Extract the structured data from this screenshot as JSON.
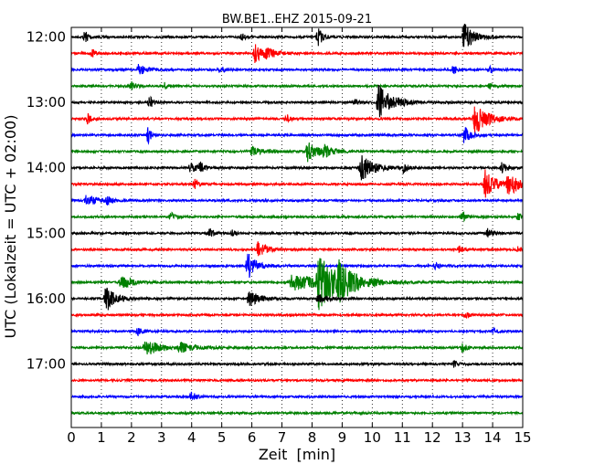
{
  "chart_data": {
    "type": "line",
    "title": "BW.BE1..EHZ 2015-09-21",
    "xlabel": "Zeit  [min]",
    "ylabel": "UTC (Lokalzeit = UTC + 02:00)",
    "xlim": [
      0,
      15
    ],
    "x_ticks": [
      "0",
      "1",
      "2",
      "3",
      "4",
      "5",
      "6",
      "7",
      "8",
      "9",
      "10",
      "11",
      "12",
      "13",
      "14",
      "15"
    ],
    "y_tick_labels": [
      "12:00",
      "13:00",
      "14:00",
      "15:00",
      "16:00",
      "17:00"
    ],
    "grid": "vertical dotted at each minute",
    "trace_interval_min": 15,
    "color_cycle": [
      "#000000",
      "#ff0000",
      "#0000ff",
      "#008000"
    ],
    "traces": [
      {
        "start": "12:00",
        "events": [
          {
            "t": 0.45,
            "a": 0.4,
            "d": 0.15
          },
          {
            "t": 5.65,
            "a": 0.25,
            "d": 0.12
          },
          {
            "t": 8.2,
            "a": 0.6,
            "d": 0.15
          },
          {
            "t": 13.05,
            "a": 0.85,
            "d": 0.3
          }
        ]
      },
      {
        "start": "12:15",
        "events": [
          {
            "t": 0.7,
            "a": 0.25,
            "d": 0.12
          },
          {
            "t": 6.1,
            "a": 0.6,
            "d": 0.3
          },
          {
            "t": 6.5,
            "a": 0.25,
            "d": 0.3
          }
        ]
      },
      {
        "start": "12:30",
        "events": [
          {
            "t": 2.25,
            "a": 0.4,
            "d": 0.2
          },
          {
            "t": 4.95,
            "a": 0.25,
            "d": 0.12
          },
          {
            "t": 12.7,
            "a": 0.3,
            "d": 0.12
          },
          {
            "t": 13.9,
            "a": 0.2,
            "d": 0.15
          }
        ]
      },
      {
        "start": "12:45",
        "events": [
          {
            "t": 2.0,
            "a": 0.25,
            "d": 0.12
          },
          {
            "t": 3.1,
            "a": 0.2,
            "d": 0.12
          },
          {
            "t": 13.9,
            "a": 0.2,
            "d": 0.12
          }
        ]
      },
      {
        "start": "13:00",
        "events": [
          {
            "t": 2.6,
            "a": 0.4,
            "d": 0.12
          },
          {
            "t": 9.4,
            "a": 0.3,
            "d": 0.1
          },
          {
            "t": 10.2,
            "a": 1.1,
            "d": 0.45
          }
        ]
      },
      {
        "start": "13:15",
        "events": [
          {
            "t": 0.55,
            "a": 0.35,
            "d": 0.12
          },
          {
            "t": 7.15,
            "a": 0.3,
            "d": 0.1
          },
          {
            "t": 13.4,
            "a": 1.0,
            "d": 0.4
          }
        ]
      },
      {
        "start": "13:30",
        "events": [
          {
            "t": 2.55,
            "a": 0.5,
            "d": 0.12
          },
          {
            "t": 13.05,
            "a": 0.55,
            "d": 0.2
          }
        ]
      },
      {
        "start": "13:45",
        "events": [
          {
            "t": 6.0,
            "a": 0.3,
            "d": 0.4
          },
          {
            "t": 7.85,
            "a": 0.6,
            "d": 0.35
          },
          {
            "t": 8.4,
            "a": 0.3,
            "d": 0.3
          }
        ]
      },
      {
        "start": "14:00",
        "events": [
          {
            "t": 3.95,
            "a": 0.3,
            "d": 0.3
          },
          {
            "t": 4.3,
            "a": 0.3,
            "d": 0.1
          },
          {
            "t": 9.6,
            "a": 0.9,
            "d": 0.4
          },
          {
            "t": 11.05,
            "a": 0.3,
            "d": 0.1
          },
          {
            "t": 14.3,
            "a": 0.3,
            "d": 0.2
          }
        ]
      },
      {
        "start": "14:15",
        "events": [
          {
            "t": 4.1,
            "a": 0.35,
            "d": 0.1
          },
          {
            "t": 13.75,
            "a": 0.9,
            "d": 0.3
          },
          {
            "t": 14.5,
            "a": 0.8,
            "d": 0.35
          }
        ]
      },
      {
        "start": "14:30",
        "events": [
          {
            "t": 0.5,
            "a": 0.35,
            "d": 0.4
          },
          {
            "t": 1.2,
            "a": 0.2,
            "d": 0.15
          }
        ]
      },
      {
        "start": "14:45",
        "events": [
          {
            "t": 3.3,
            "a": 0.3,
            "d": 0.12
          },
          {
            "t": 13.0,
            "a": 0.3,
            "d": 0.12
          },
          {
            "t": 14.85,
            "a": 0.25,
            "d": 0.1
          }
        ]
      },
      {
        "start": "15:00",
        "events": [
          {
            "t": 4.6,
            "a": 0.3,
            "d": 0.12
          },
          {
            "t": 5.35,
            "a": 0.25,
            "d": 0.1
          },
          {
            "t": 13.85,
            "a": 0.4,
            "d": 0.12
          }
        ]
      },
      {
        "start": "15:15",
        "events": [
          {
            "t": 6.2,
            "a": 0.45,
            "d": 0.3
          },
          {
            "t": 12.9,
            "a": 0.25,
            "d": 0.12
          },
          {
            "t": 14.85,
            "a": 0.2,
            "d": 0.1
          }
        ]
      },
      {
        "start": "15:30",
        "events": [
          {
            "t": 5.85,
            "a": 0.9,
            "d": 0.25
          },
          {
            "t": 12.1,
            "a": 0.25,
            "d": 0.12
          }
        ]
      },
      {
        "start": "15:45",
        "events": [
          {
            "t": 1.65,
            "a": 0.45,
            "d": 0.35
          },
          {
            "t": 7.3,
            "a": 0.5,
            "d": 1.2
          },
          {
            "t": 8.2,
            "a": 1.5,
            "d": 0.6
          },
          {
            "t": 8.9,
            "a": 0.8,
            "d": 0.5
          }
        ]
      },
      {
        "start": "16:00",
        "events": [
          {
            "t": 1.15,
            "a": 0.85,
            "d": 0.3
          },
          {
            "t": 5.9,
            "a": 0.55,
            "d": 0.3
          },
          {
            "t": 8.2,
            "a": 0.3,
            "d": 0.3
          }
        ]
      },
      {
        "start": "16:15",
        "events": [
          {
            "t": 13.1,
            "a": 0.2,
            "d": 0.12
          }
        ]
      },
      {
        "start": "16:30",
        "events": [
          {
            "t": 2.2,
            "a": 0.25,
            "d": 0.15
          },
          {
            "t": 14.0,
            "a": 0.2,
            "d": 0.12
          }
        ]
      },
      {
        "start": "16:45",
        "events": [
          {
            "t": 2.45,
            "a": 0.6,
            "d": 0.4
          },
          {
            "t": 3.6,
            "a": 0.3,
            "d": 0.5
          },
          {
            "t": 13.0,
            "a": 0.3,
            "d": 0.12
          }
        ]
      },
      {
        "start": "17:00",
        "events": [
          {
            "t": 12.7,
            "a": 0.25,
            "d": 0.1
          }
        ]
      },
      {
        "start": "17:15",
        "events": []
      },
      {
        "start": "17:30",
        "events": [
          {
            "t": 4.0,
            "a": 0.35,
            "d": 0.15
          }
        ]
      },
      {
        "start": "17:45",
        "events": []
      }
    ]
  }
}
